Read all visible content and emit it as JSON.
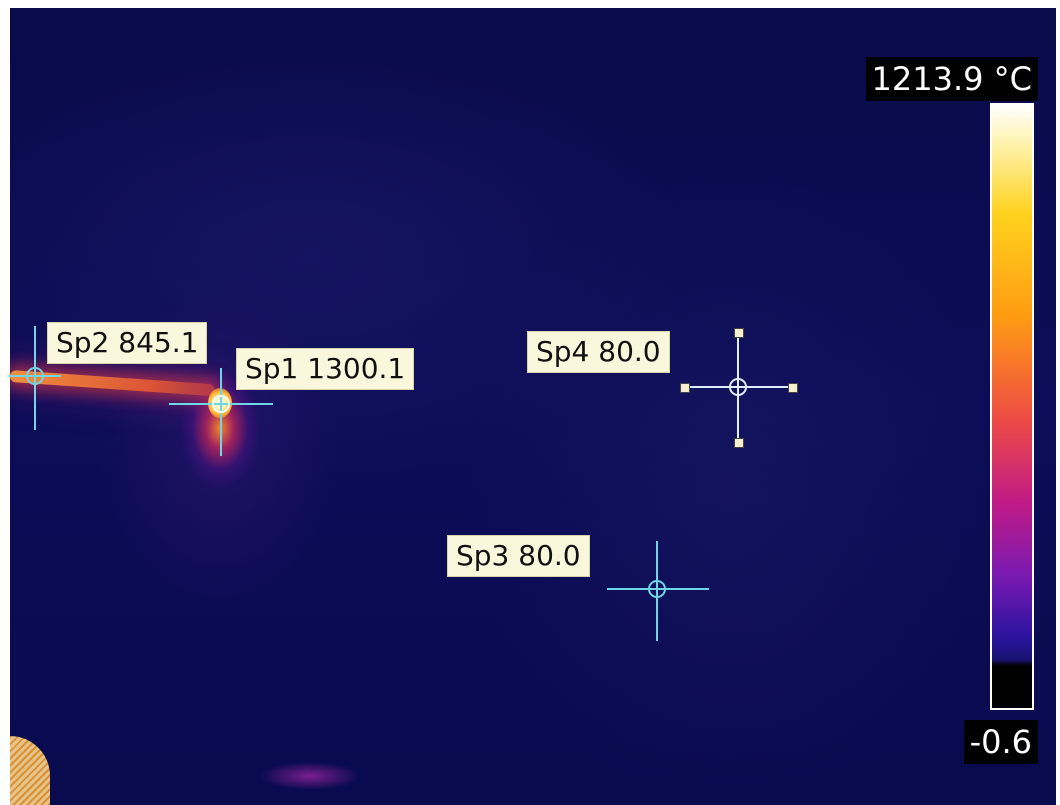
{
  "spots": {
    "sp1": {
      "label": "Sp1 1300.1"
    },
    "sp2": {
      "label": "Sp2 845.1"
    },
    "sp3": {
      "label": "Sp3 80.0"
    },
    "sp4": {
      "label": "Sp4 80.0"
    }
  },
  "scale": {
    "max_label": "1213.9 °C",
    "min_label": "-0.6"
  },
  "colors": {
    "background": "#0b0c52",
    "crosshair": "#6fd6e6",
    "label_bg": "#faf8dc"
  }
}
